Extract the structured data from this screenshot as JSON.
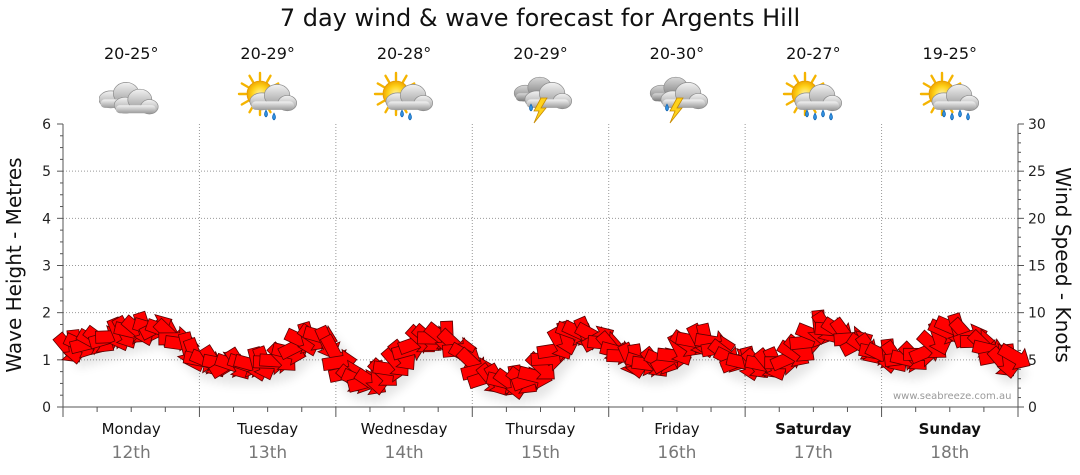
{
  "chart_data": {
    "type": "line",
    "title": "7 day wind & wave forecast for Argents Hill",
    "ylabel_left": "Wave Height - Metres",
    "ylabel_right": "Wind Speed - Knots",
    "ylim_left": [
      0,
      6
    ],
    "ylim_right": [
      0,
      30
    ],
    "yticks_left": [
      "0",
      "1",
      "2",
      "3",
      "4",
      "5",
      "6"
    ],
    "yticks_right": [
      "0",
      "5",
      "10",
      "15",
      "20",
      "25",
      "30"
    ],
    "grid": true,
    "credit": "www.seabreeze.com.au",
    "days": [
      {
        "day": "Monday",
        "date": "12th",
        "temp": "20-25°",
        "icon": "cloudy-icon",
        "bold": false
      },
      {
        "day": "Tuesday",
        "date": "13th",
        "temp": "20-29°",
        "icon": "sun-cloud-rain-icon",
        "bold": false
      },
      {
        "day": "Wednesday",
        "date": "14th",
        "temp": "20-28°",
        "icon": "sun-cloud-rain-icon",
        "bold": false
      },
      {
        "day": "Thursday",
        "date": "15th",
        "temp": "20-29°",
        "icon": "thunderstorm-icon",
        "bold": false
      },
      {
        "day": "Friday",
        "date": "16th",
        "temp": "20-30°",
        "icon": "thunderstorm-icon",
        "bold": false
      },
      {
        "day": "Saturday",
        "date": "17th",
        "temp": "20-27°",
        "icon": "sun-cloud-heavy-rain-icon",
        "bold": true
      },
      {
        "day": "Sunday",
        "date": "18th",
        "temp": "19-25°",
        "icon": "sun-cloud-heavy-rain-icon",
        "bold": true
      }
    ],
    "x_unit": "day index (0 = start of Monday, 7 = end of Sunday)",
    "wind_series": {
      "name": "Wind Speed",
      "color": "#ff0000",
      "points": [
        [
          0.0,
          6.0
        ],
        [
          0.25,
          7.0
        ],
        [
          0.5,
          8.0
        ],
        [
          0.7,
          8.5
        ],
        [
          0.85,
          7.0
        ],
        [
          1.0,
          5.0
        ],
        [
          1.2,
          4.5
        ],
        [
          1.45,
          4.5
        ],
        [
          1.6,
          5.0
        ],
        [
          1.75,
          7.0
        ],
        [
          1.9,
          7.5
        ],
        [
          2.0,
          5.5
        ],
        [
          2.1,
          3.0
        ],
        [
          2.25,
          2.5
        ],
        [
          2.4,
          4.0
        ],
        [
          2.6,
          7.0
        ],
        [
          2.8,
          7.5
        ],
        [
          2.95,
          5.5
        ],
        [
          3.1,
          3.0
        ],
        [
          3.3,
          2.5
        ],
        [
          3.45,
          3.0
        ],
        [
          3.6,
          6.0
        ],
        [
          3.75,
          8.0
        ],
        [
          3.9,
          7.5
        ],
        [
          4.0,
          6.5
        ],
        [
          4.15,
          5.0
        ],
        [
          4.3,
          4.5
        ],
        [
          4.45,
          5.0
        ],
        [
          4.6,
          7.0
        ],
        [
          4.75,
          7.0
        ],
        [
          4.9,
          5.0
        ],
        [
          5.05,
          4.5
        ],
        [
          5.25,
          4.5
        ],
        [
          5.4,
          6.0
        ],
        [
          5.55,
          8.5
        ],
        [
          5.7,
          8.0
        ],
        [
          5.85,
          6.5
        ],
        [
          6.0,
          5.5
        ],
        [
          6.2,
          5.0
        ],
        [
          6.35,
          6.0
        ],
        [
          6.5,
          8.5
        ],
        [
          6.65,
          7.5
        ],
        [
          6.8,
          6.0
        ],
        [
          6.9,
          4.5
        ],
        [
          7.0,
          5.5
        ]
      ]
    }
  }
}
